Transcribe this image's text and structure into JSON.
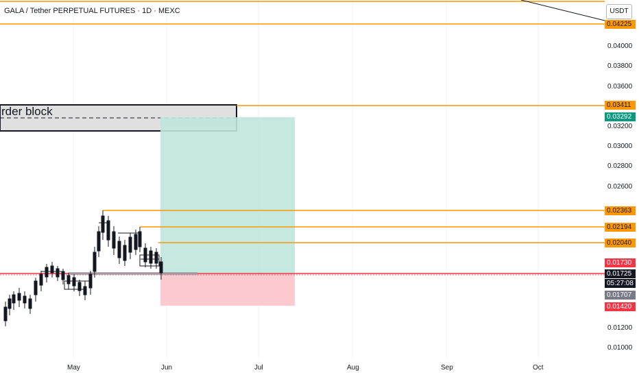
{
  "header": {
    "title": "GALA / Tether PERPETUAL FUTURES · 1D · MEXC",
    "unit_button": "USDT"
  },
  "order_block": {
    "label": "rder block"
  },
  "price_axis": {
    "ticks": [
      "0.04000",
      "0.03800",
      "0.03600",
      "0.03200",
      "0.03000",
      "0.02800",
      "0.02600",
      "0.01200",
      "0.01000"
    ]
  },
  "time_axis": {
    "labels": [
      "May",
      "Jun",
      "Jul",
      "Aug",
      "Sep",
      "Oct"
    ]
  },
  "levels": [
    {
      "price": "0.04225",
      "color": "#ff9800"
    },
    {
      "price": "0.03411",
      "color": "#ff9800"
    },
    {
      "price": "0.02363",
      "color": "#ff9800"
    },
    {
      "price": "0.02194",
      "color": "#ff9800"
    },
    {
      "price": "0.02040",
      "color": "#ff9800"
    }
  ],
  "position": {
    "target": "0.03292",
    "entry_marker": "0.01707",
    "stop": "0.01420"
  },
  "current": {
    "price": "0.01725",
    "countdown": "05:27:08",
    "alert": "0.01730"
  },
  "colors": {
    "orange": "#ff9800",
    "profit_zone": "#bfe6dd",
    "loss_zone": "#fcc7cc",
    "current_line": "#f23645"
  }
}
